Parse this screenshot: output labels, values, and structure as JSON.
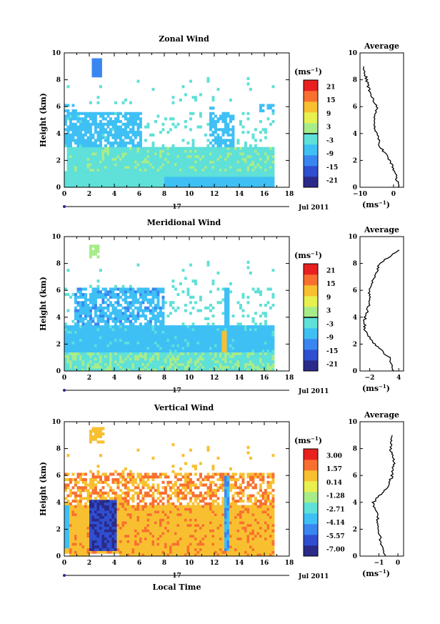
{
  "panels": [
    {
      "title": "Zonal Wind",
      "ylabel": "Height (km)",
      "xticks": [
        "0",
        "2",
        "4",
        "6",
        "8",
        "10",
        "12",
        "14",
        "16",
        "18"
      ],
      "yticks": [
        "0",
        "2",
        "4",
        "6",
        "8",
        "10"
      ],
      "date_day": "17",
      "date_month": "Jul 2011",
      "colorbar": {
        "unit": "(ms-1)",
        "labels": [
          "21",
          "15",
          "9",
          "3",
          "-3",
          "-9",
          "-15",
          "-21"
        ]
      },
      "avg": {
        "title": "Average",
        "xticks": [
          "−10",
          "0"
        ],
        "yticks": [
          "0",
          "2",
          "4",
          "6",
          "8",
          "10"
        ],
        "xlabel": "(ms-1)"
      }
    },
    {
      "title": "Meridional Wind",
      "ylabel": "Height (km)",
      "xticks": [
        "0",
        "2",
        "4",
        "6",
        "8",
        "10",
        "12",
        "14",
        "16",
        "18"
      ],
      "yticks": [
        "0",
        "2",
        "4",
        "6",
        "8",
        "10"
      ],
      "date_day": "17",
      "date_month": "Jul 2011",
      "colorbar": {
        "unit": "(ms-1)",
        "labels": [
          "21",
          "15",
          "9",
          "3",
          "-3",
          "-9",
          "-15",
          "-21"
        ]
      },
      "avg": {
        "title": "Average",
        "xticks": [
          "−2",
          "4"
        ],
        "yticks": [
          "0",
          "2",
          "4",
          "6",
          "8",
          "10"
        ],
        "xlabel": "(ms-1)"
      }
    },
    {
      "title": "Vertical Wind",
      "ylabel": "Height (km)",
      "xlabel": "Local Time",
      "xticks": [
        "0",
        "2",
        "4",
        "6",
        "8",
        "10",
        "12",
        "14",
        "16",
        "18"
      ],
      "yticks": [
        "0",
        "2",
        "4",
        "6",
        "8",
        "10"
      ],
      "date_day": "17",
      "date_month": "Jul 2011",
      "colorbar": {
        "unit": "(ms-1)",
        "labels": [
          "3.00",
          "1.57",
          "0.14",
          "-1.28",
          "-2.71",
          "-4.14",
          "-5.57",
          "-7.00"
        ]
      },
      "avg": {
        "title": "Average",
        "xticks": [
          "−1",
          "0"
        ],
        "yticks": [
          "0",
          "2",
          "4",
          "6",
          "8",
          "10"
        ],
        "xlabel": "(ms-1)"
      }
    }
  ],
  "colors": {
    "scale": [
      "#2a2a8a",
      "#2f4fd0",
      "#3a86f0",
      "#3fc0f5",
      "#5fe0d8",
      "#a8ec8a",
      "#e8f050",
      "#f8c030",
      "#f87030",
      "#e82020"
    ],
    "zero_line": "#000000"
  },
  "chart_data": [
    {
      "type": "heatmap",
      "title": "Zonal Wind",
      "xlabel": "",
      "ylabel": "Height (km)",
      "xlim": [
        0,
        18
      ],
      "ylim": [
        0,
        10
      ],
      "color_range": [
        -21,
        21
      ],
      "approx_field": {
        "note_values_ms": "estimated",
        "regions": [
          {
            "t": [
              0,
              16.8
            ],
            "h": [
              0.0,
              1.2
            ],
            "value": -6
          },
          {
            "t": [
              0,
              16.8
            ],
            "h": [
              1.2,
              3.0
            ],
            "value": -1
          },
          {
            "t": [
              0.5,
              6.0
            ],
            "h": [
              3.0,
              5.6
            ],
            "value": -4
          },
          {
            "t": [
              11.5,
              13.5
            ],
            "h": [
              2.0,
              5.8
            ],
            "value": -7
          }
        ]
      },
      "average_profile": {
        "xlim": [
          -10,
          3
        ],
        "height_km": [
          0,
          1,
          2,
          3,
          4,
          5,
          6,
          7,
          8,
          9
        ],
        "value_ms": [
          1.5,
          0.5,
          -1,
          -4,
          -5,
          -6,
          -5,
          -7,
          -8,
          -9
        ]
      }
    },
    {
      "type": "heatmap",
      "title": "Meridional Wind",
      "xlabel": "",
      "ylabel": "Height (km)",
      "xlim": [
        0,
        18
      ],
      "ylim": [
        0,
        10
      ],
      "color_range": [
        -21,
        21
      ],
      "approx_field": {
        "regions": [
          {
            "t": [
              0,
              16.8
            ],
            "h": [
              0.0,
              1.5
            ],
            "value": -1
          },
          {
            "t": [
              0,
              16.8
            ],
            "h": [
              1.5,
              3.5
            ],
            "value": -5
          },
          {
            "t": [
              1.5,
              8.0
            ],
            "h": [
              3.5,
              6.0
            ],
            "value": -7
          },
          {
            "t": [
              12.6,
              13.0
            ],
            "h": [
              1.5,
              3.0
            ],
            "value": 12
          }
        ]
      },
      "average_profile": {
        "xlim": [
          -4,
          5
        ],
        "height_km": [
          0,
          1,
          2,
          3,
          4,
          5,
          6,
          7,
          8,
          9
        ],
        "value_ms": [
          3,
          2,
          -1,
          -3,
          -3,
          -2,
          -2,
          -1,
          0,
          4
        ]
      }
    },
    {
      "type": "heatmap",
      "title": "Vertical Wind",
      "xlabel": "Local Time",
      "ylabel": "Height (km)",
      "xlim": [
        0,
        18
      ],
      "ylim": [
        0,
        10
      ],
      "color_range": [
        -7.0,
        3.0
      ],
      "approx_field": {
        "regions": [
          {
            "t": [
              0,
              16.8
            ],
            "h": [
              0.0,
              3.8
            ],
            "value": 0.6
          },
          {
            "t": [
              2.0,
              4.2
            ],
            "h": [
              0.5,
              4.3
            ],
            "value": -6.5
          },
          {
            "t": [
              12.8,
              13.2
            ],
            "h": [
              0.5,
              5.5
            ],
            "value": -5.0
          },
          {
            "t": [
              0,
              0.5
            ],
            "h": [
              0.5,
              3.5
            ],
            "value": -4.0
          }
        ]
      },
      "average_profile": {
        "xlim": [
          -2,
          0.3
        ],
        "height_km": [
          0,
          1,
          2,
          3,
          4,
          5,
          6,
          7,
          8,
          9
        ],
        "value_ms": [
          -0.7,
          -0.9,
          -1.0,
          -1.1,
          -1.3,
          -0.6,
          -0.3,
          -0.2,
          -0.4,
          -0.3
        ]
      }
    }
  ]
}
